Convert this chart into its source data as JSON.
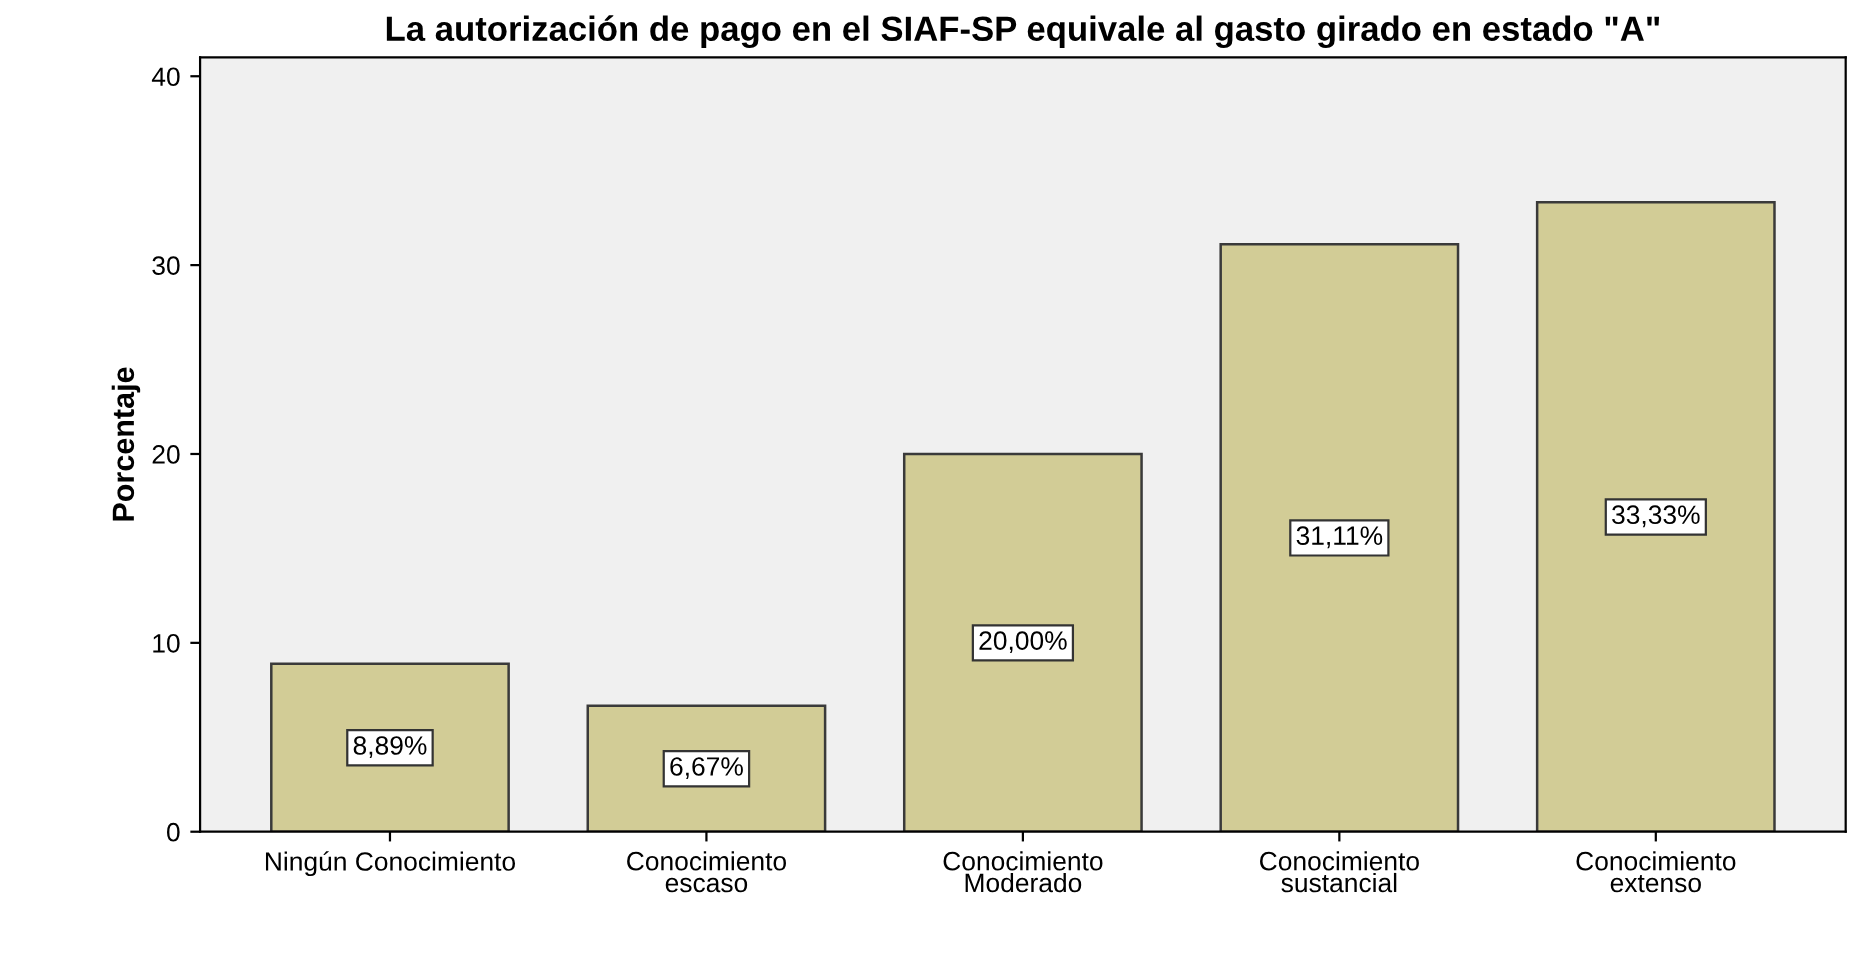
{
  "chart_data": {
    "type": "bar",
    "title": "La autorización de pago en el SIAF-SP equivale al gasto girado en estado \"A\"",
    "ylabel": "Porcentaje",
    "categories": [
      "Ningún Conocimiento",
      "Conocimiento\nescaso",
      "Conocimiento\nModerado",
      "Conocimiento\nsustancial",
      "Conocimiento\nextenso"
    ],
    "values": [
      8.89,
      6.67,
      20.0,
      31.11,
      33.33
    ],
    "value_labels": [
      "8,89%",
      "6,67%",
      "20,00%",
      "31,11%",
      "33,33%"
    ],
    "color": "#d2cc96",
    "ylim": [
      0,
      41
    ],
    "yticks": [
      0,
      10,
      20,
      30,
      40
    ],
    "grid": false,
    "legend": false
  }
}
